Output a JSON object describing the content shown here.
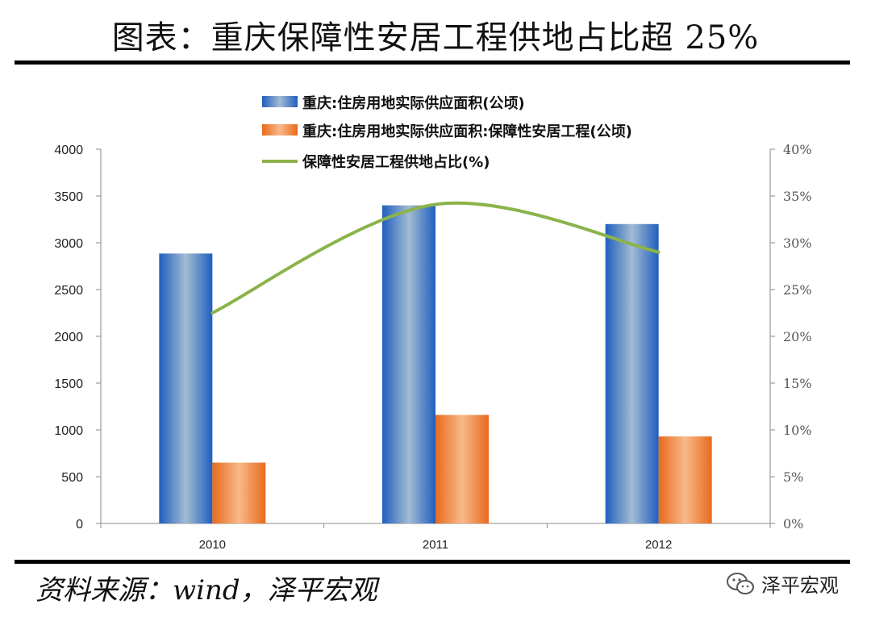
{
  "title": "图表：重庆保障性安居工程供地占比超 25%",
  "source": "资料来源：wind，泽平宏观",
  "brand": "泽平宏观",
  "chart_data": {
    "type": "bar",
    "categories": [
      "2010",
      "2011",
      "2012"
    ],
    "series": [
      {
        "name": "重庆:住房用地实际供应面积(公顷)",
        "type": "bar",
        "axis": "left",
        "values": [
          2885,
          3400,
          3200
        ],
        "color": "#2F6FC0"
      },
      {
        "name": "重庆:住房用地实际供应面积:保障性安居工程(公顷)",
        "type": "bar",
        "axis": "left",
        "values": [
          650,
          1160,
          930
        ],
        "color": "#EE7B2C"
      },
      {
        "name": "保障性安居工程供地占比(%)",
        "type": "line",
        "axis": "right",
        "values": [
          22.5,
          34.1,
          29.0
        ],
        "color": "#8BB34A"
      }
    ],
    "y_left": {
      "min": 0,
      "max": 4000,
      "step": 500,
      "ticks": [
        "0",
        "500",
        "1000",
        "1500",
        "2000",
        "2500",
        "3000",
        "3500",
        "4000"
      ]
    },
    "y_right": {
      "min": 0,
      "max": 40,
      "step": 5,
      "ticks": [
        "0%",
        "5%",
        "10%",
        "15%",
        "20%",
        "25%",
        "30%",
        "35%",
        "40%"
      ]
    },
    "legend_position": "top-center",
    "grid": false
  }
}
